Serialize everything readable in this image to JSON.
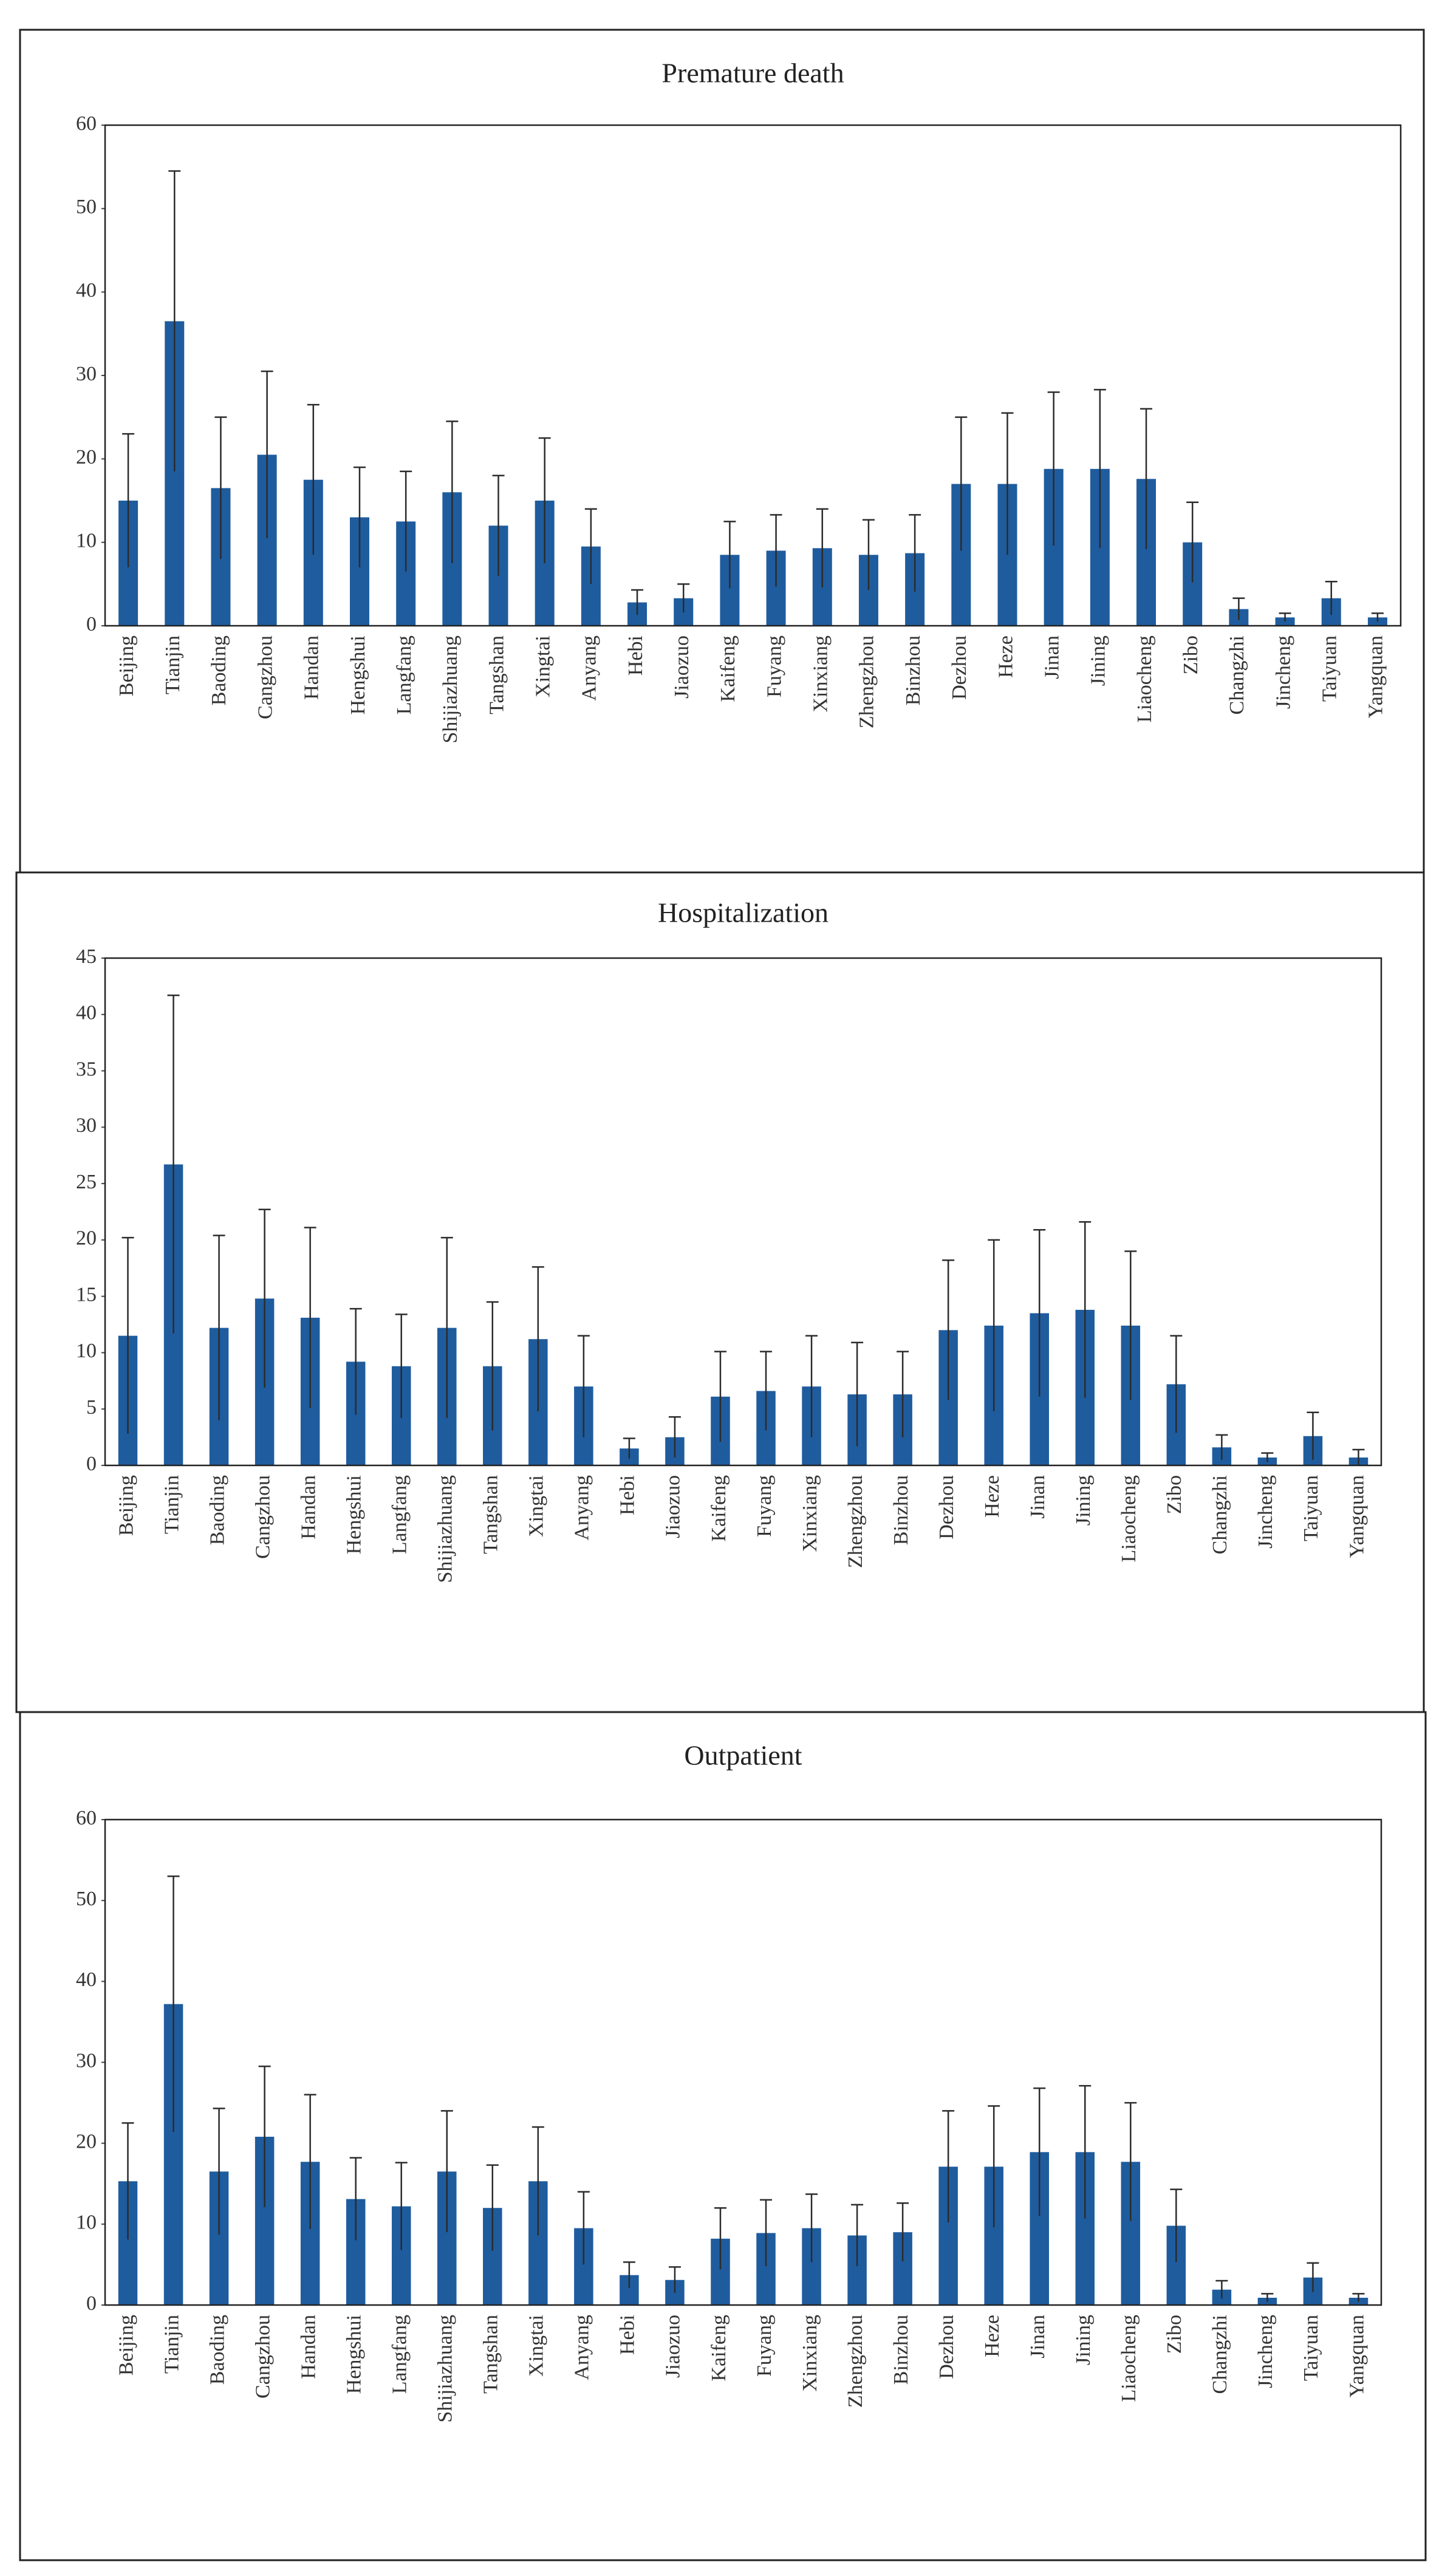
{
  "chart_data": [
    {
      "type": "bar",
      "title": "Premature death",
      "categories": [
        "Beijing",
        "Tianjin",
        "Baoding",
        "Cangzhou",
        "Handan",
        "Hengshui",
        "Langfang",
        "Shijiazhuang",
        "Tangshan",
        "Xingtai",
        "Anyang",
        "Hebi",
        "Jiaozuo",
        "Kaifeng",
        "Fuyang",
        "Xinxiang",
        "Zhengzhou",
        "Binzhou",
        "Dezhou",
        "Heze",
        "Jinan",
        "Jining",
        "Liaocheng",
        "Zibo",
        "Changzhi",
        "Jincheng",
        "Taiyuan",
        "Yangquan"
      ],
      "values": [
        15,
        36.5,
        16.5,
        20.5,
        17.5,
        13,
        12.5,
        16,
        12,
        15,
        9.5,
        2.8,
        3.3,
        8.5,
        9,
        9.3,
        8.5,
        8.7,
        17,
        17,
        18.8,
        18.8,
        17.6,
        10,
        2,
        1,
        3.3,
        1
      ],
      "errors": [
        8,
        18,
        8.5,
        10,
        9,
        6,
        6,
        8.5,
        6,
        7.5,
        4.5,
        1.5,
        1.7,
        4,
        4.3,
        4.7,
        4.2,
        4.6,
        8,
        8.5,
        9.2,
        9.5,
        8.4,
        4.8,
        1.3,
        0.5,
        2,
        0.5
      ],
      "color": "#1f5c9e",
      "ylim": [
        0,
        60
      ],
      "yticks": [
        0,
        10,
        20,
        30,
        40,
        50,
        60
      ]
    },
    {
      "type": "bar",
      "title": "Hospitalization",
      "categories": [
        "Beijing",
        "Tianjin",
        "Baoding",
        "Cangzhou",
        "Handan",
        "Hengshui",
        "Langfang",
        "Shijiazhuang",
        "Tangshan",
        "Xingtai",
        "Anyang",
        "Hebi",
        "Jiaozuo",
        "Kaifeng",
        "Fuyang",
        "Xinxiang",
        "Zhengzhou",
        "Binzhou",
        "Dezhou",
        "Heze",
        "Jinan",
        "Jining",
        "Liaocheng",
        "Zibo",
        "Changzhi",
        "Jincheng",
        "Taiyuan",
        "Yangquan"
      ],
      "values": [
        11.5,
        26.7,
        12.2,
        14.8,
        13.1,
        9.2,
        8.8,
        12.2,
        8.8,
        11.2,
        7,
        1.5,
        2.5,
        6.1,
        6.6,
        7,
        6.3,
        6.3,
        12,
        12.4,
        13.5,
        13.8,
        12.4,
        7.2,
        1.6,
        0.7,
        2.6,
        0.7
      ],
      "errors": [
        8.7,
        15,
        8.2,
        7.9,
        8,
        4.7,
        4.6,
        8,
        5.7,
        6.4,
        4.5,
        0.9,
        1.8,
        4,
        3.5,
        4.5,
        4.6,
        3.8,
        6.2,
        7.6,
        7.4,
        7.8,
        6.6,
        4.3,
        1.1,
        0.4,
        2.1,
        0.7
      ],
      "color": "#1f5c9e",
      "ylim": [
        0,
        45
      ],
      "yticks": [
        0,
        5,
        10,
        15,
        20,
        25,
        30,
        35,
        40,
        45
      ]
    },
    {
      "type": "bar",
      "title": "Outpatient",
      "categories": [
        "Beijing",
        "Tianjin",
        "Baoding",
        "Cangzhou",
        "Handan",
        "Hengshui",
        "Langfang",
        "Shijiazhuang",
        "Tangshan",
        "Xingtai",
        "Anyang",
        "Hebi",
        "Jiaozuo",
        "Kaifeng",
        "Fuyang",
        "Xinxiang",
        "Zhengzhou",
        "Binzhou",
        "Dezhou",
        "Heze",
        "Jinan",
        "Jining",
        "Liaocheng",
        "Zibo",
        "Changzhi",
        "Jincheng",
        "Taiyuan",
        "Yangquan"
      ],
      "values": [
        15.3,
        37.2,
        16.5,
        20.8,
        17.7,
        13.1,
        12.2,
        16.5,
        12,
        15.3,
        9.5,
        3.7,
        3.1,
        8.2,
        8.9,
        9.5,
        8.6,
        9,
        17.1,
        17.1,
        18.9,
        18.9,
        17.7,
        9.8,
        1.9,
        0.9,
        3.4,
        0.9
      ],
      "errors": [
        7.2,
        15.8,
        7.8,
        8.7,
        8.3,
        5.1,
        5.4,
        7.5,
        5.3,
        6.7,
        4.5,
        1.6,
        1.6,
        3.8,
        4.1,
        4.2,
        3.8,
        3.6,
        6.9,
        7.5,
        7.9,
        8.2,
        7.3,
        4.5,
        1.1,
        0.5,
        1.8,
        0.5
      ],
      "color": "#1f5c9e",
      "ylim": [
        0,
        60
      ],
      "yticks": [
        0,
        10,
        20,
        30,
        40,
        50,
        60
      ]
    }
  ]
}
